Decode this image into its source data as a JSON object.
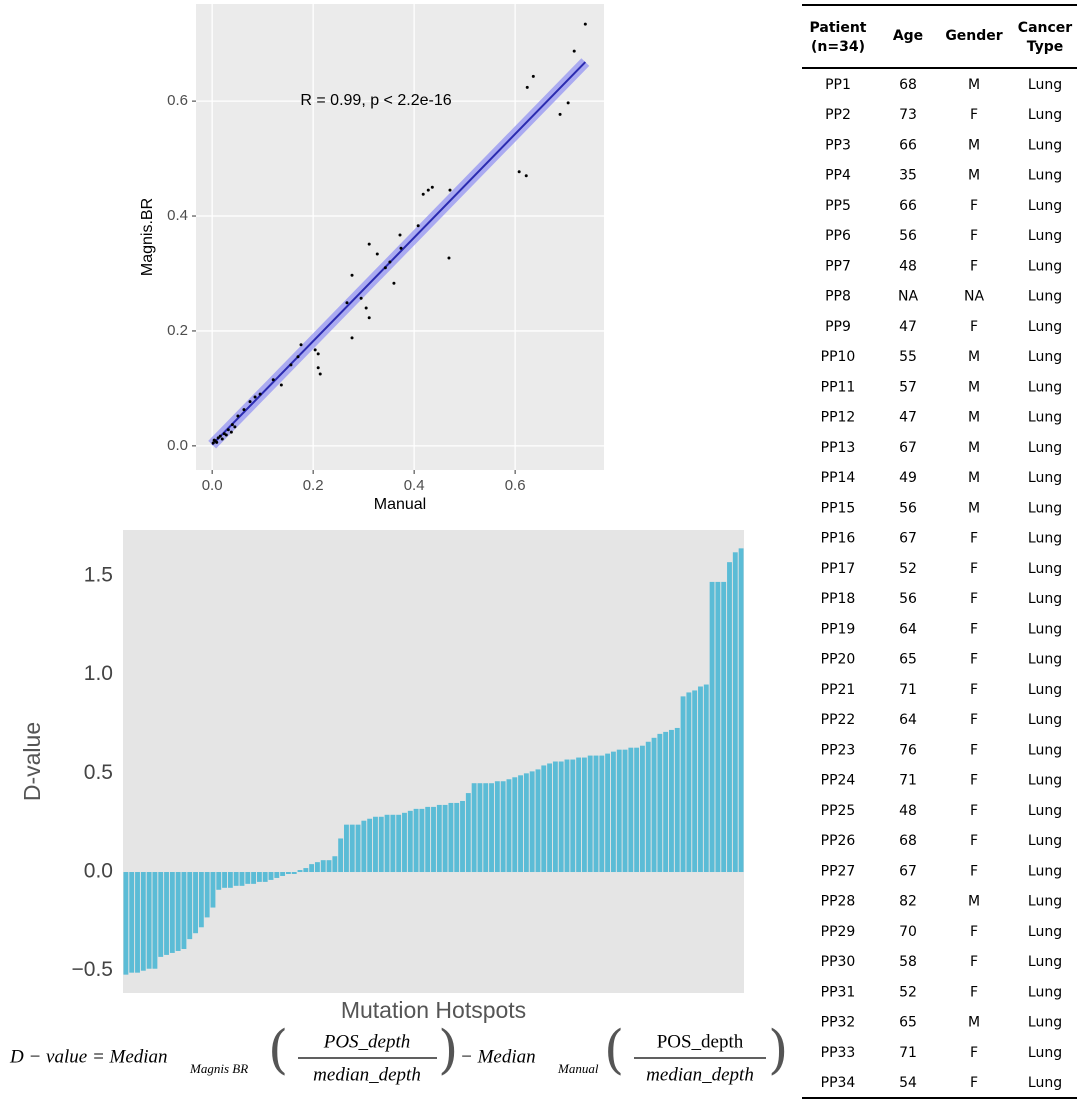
{
  "chart_data": [
    {
      "type": "scatter",
      "x_label": "Manual",
      "y_label": "Magnis.BR",
      "annotation": "R = 0.99, p < 2.2e-16",
      "x": [
        0.739,
        0.717,
        0.636,
        0.624,
        0.705,
        0.689,
        0.608,
        0.622,
        0.436,
        0.428,
        0.418,
        0.471,
        0.408,
        0.469,
        0.311,
        0.327,
        0.372,
        0.352,
        0.36,
        0.343,
        0.374,
        0.277,
        0.295,
        0.305,
        0.311,
        0.277,
        0.267,
        0.204,
        0.21,
        0.21,
        0.214,
        0.176,
        0.17,
        0.156,
        0.137,
        0.121,
        0.095,
        0.085,
        0.075,
        0.063,
        0.051,
        0.04,
        0.032,
        0.024,
        0.016,
        0.012,
        0.006,
        0.002,
        0.038,
        0.02,
        0.045,
        0.028,
        0.009,
        0.004
      ],
      "values": [
        0.734,
        0.687,
        0.643,
        0.624,
        0.597,
        0.577,
        0.477,
        0.47,
        0.45,
        0.445,
        0.438,
        0.445,
        0.383,
        0.327,
        0.351,
        0.334,
        0.367,
        0.32,
        0.283,
        0.31,
        0.344,
        0.297,
        0.257,
        0.24,
        0.223,
        0.188,
        0.249,
        0.167,
        0.16,
        0.136,
        0.125,
        0.176,
        0.155,
        0.141,
        0.106,
        0.115,
        0.09,
        0.085,
        0.077,
        0.063,
        0.052,
        0.037,
        0.028,
        0.021,
        0.017,
        0.014,
        0.009,
        0.005,
        0.024,
        0.012,
        0.033,
        0.019,
        0.006,
        0.01
      ],
      "color": "#000000",
      "regression_line": {
        "x": [
          0.0,
          0.739
        ],
        "values": [
          0.002,
          0.668
        ],
        "color": "#2b2bb0",
        "band_color": "#9a9af2"
      },
      "xlim": [
        -0.032,
        0.776
      ],
      "ylim": [
        -0.042,
        0.769
      ],
      "xticks": [
        {
          "value": 0,
          "label": "0.0"
        },
        0.2,
        0.4,
        0.6
      ],
      "yticks": [
        {
          "value": 0,
          "label": "0.0"
        },
        0.2,
        0.4,
        0.6
      ],
      "grid": true
    },
    {
      "type": "bar",
      "x_label": "Mutation Hotspots",
      "y_label": "D-value",
      "color": "#5bbcd6",
      "values": [
        -0.52,
        -0.51,
        -0.51,
        -0.5,
        -0.49,
        -0.49,
        -0.43,
        -0.42,
        -0.41,
        -0.4,
        -0.39,
        -0.34,
        -0.31,
        -0.28,
        -0.23,
        -0.18,
        -0.09,
        -0.08,
        -0.08,
        -0.07,
        -0.07,
        -0.06,
        -0.06,
        -0.05,
        -0.05,
        -0.04,
        -0.03,
        -0.02,
        -0.01,
        -0.01,
        0.01,
        0.02,
        0.04,
        0.05,
        0.06,
        0.06,
        0.08,
        0.17,
        0.24,
        0.24,
        0.24,
        0.26,
        0.27,
        0.28,
        0.28,
        0.29,
        0.29,
        0.29,
        0.3,
        0.31,
        0.32,
        0.32,
        0.33,
        0.33,
        0.34,
        0.34,
        0.35,
        0.35,
        0.36,
        0.4,
        0.45,
        0.45,
        0.45,
        0.45,
        0.46,
        0.46,
        0.47,
        0.48,
        0.49,
        0.5,
        0.51,
        0.52,
        0.54,
        0.55,
        0.56,
        0.56,
        0.57,
        0.57,
        0.58,
        0.58,
        0.59,
        0.59,
        0.59,
        0.6,
        0.61,
        0.62,
        0.62,
        0.63,
        0.63,
        0.64,
        0.66,
        0.68,
        0.7,
        0.71,
        0.72,
        0.73,
        0.89,
        0.91,
        0.92,
        0.94,
        0.95,
        1.47,
        1.47,
        1.47,
        1.57,
        1.62,
        1.64
      ],
      "ylim": [
        -0.613,
        1.733
      ],
      "yticks": [
        {
          "value": -0.5,
          "label": "−0.5"
        },
        {
          "value": 0,
          "label": "0.0"
        },
        0.5,
        {
          "value": 1,
          "label": "1.0"
        },
        1.5
      ],
      "grid": false
    }
  ],
  "formula": {
    "lhs": "D − value = Median",
    "sub1": "Magnis BR",
    "num1": "POS_depth",
    "den1": "median_depth",
    "mid": "− Median",
    "sub2": "Manual",
    "num2": "POS_depth",
    "den2": "median_depth"
  },
  "table": {
    "header": [
      "Patient\n(n=34)",
      "Age",
      "Gender",
      "Cancer\nType"
    ],
    "rows": [
      [
        "PP1",
        "68",
        "M",
        "Lung"
      ],
      [
        "PP2",
        "73",
        "F",
        "Lung"
      ],
      [
        "PP3",
        "66",
        "M",
        "Lung"
      ],
      [
        "PP4",
        "35",
        "M",
        "Lung"
      ],
      [
        "PP5",
        "66",
        "F",
        "Lung"
      ],
      [
        "PP6",
        "56",
        "F",
        "Lung"
      ],
      [
        "PP7",
        "48",
        "F",
        "Lung"
      ],
      [
        "PP8",
        "NA",
        "NA",
        "Lung"
      ],
      [
        "PP9",
        "47",
        "F",
        "Lung"
      ],
      [
        "PP10",
        "55",
        "M",
        "Lung"
      ],
      [
        "PP11",
        "57",
        "M",
        "Lung"
      ],
      [
        "PP12",
        "47",
        "M",
        "Lung"
      ],
      [
        "PP13",
        "67",
        "M",
        "Lung"
      ],
      [
        "PP14",
        "49",
        "M",
        "Lung"
      ],
      [
        "PP15",
        "56",
        "M",
        "Lung"
      ],
      [
        "PP16",
        "67",
        "F",
        "Lung"
      ],
      [
        "PP17",
        "52",
        "F",
        "Lung"
      ],
      [
        "PP18",
        "56",
        "F",
        "Lung"
      ],
      [
        "PP19",
        "64",
        "F",
        "Lung"
      ],
      [
        "PP20",
        "65",
        "F",
        "Lung"
      ],
      [
        "PP21",
        "71",
        "F",
        "Lung"
      ],
      [
        "PP22",
        "64",
        "F",
        "Lung"
      ],
      [
        "PP23",
        "76",
        "F",
        "Lung"
      ],
      [
        "PP24",
        "71",
        "F",
        "Lung"
      ],
      [
        "PP25",
        "48",
        "F",
        "Lung"
      ],
      [
        "PP26",
        "68",
        "F",
        "Lung"
      ],
      [
        "PP27",
        "67",
        "F",
        "Lung"
      ],
      [
        "PP28",
        "82",
        "M",
        "Lung"
      ],
      [
        "PP29",
        "70",
        "F",
        "Lung"
      ],
      [
        "PP30",
        "58",
        "F",
        "Lung"
      ],
      [
        "PP31",
        "52",
        "F",
        "Lung"
      ],
      [
        "PP32",
        "65",
        "M",
        "Lung"
      ],
      [
        "PP33",
        "71",
        "F",
        "Lung"
      ],
      [
        "PP34",
        "54",
        "F",
        "Lung"
      ]
    ]
  }
}
